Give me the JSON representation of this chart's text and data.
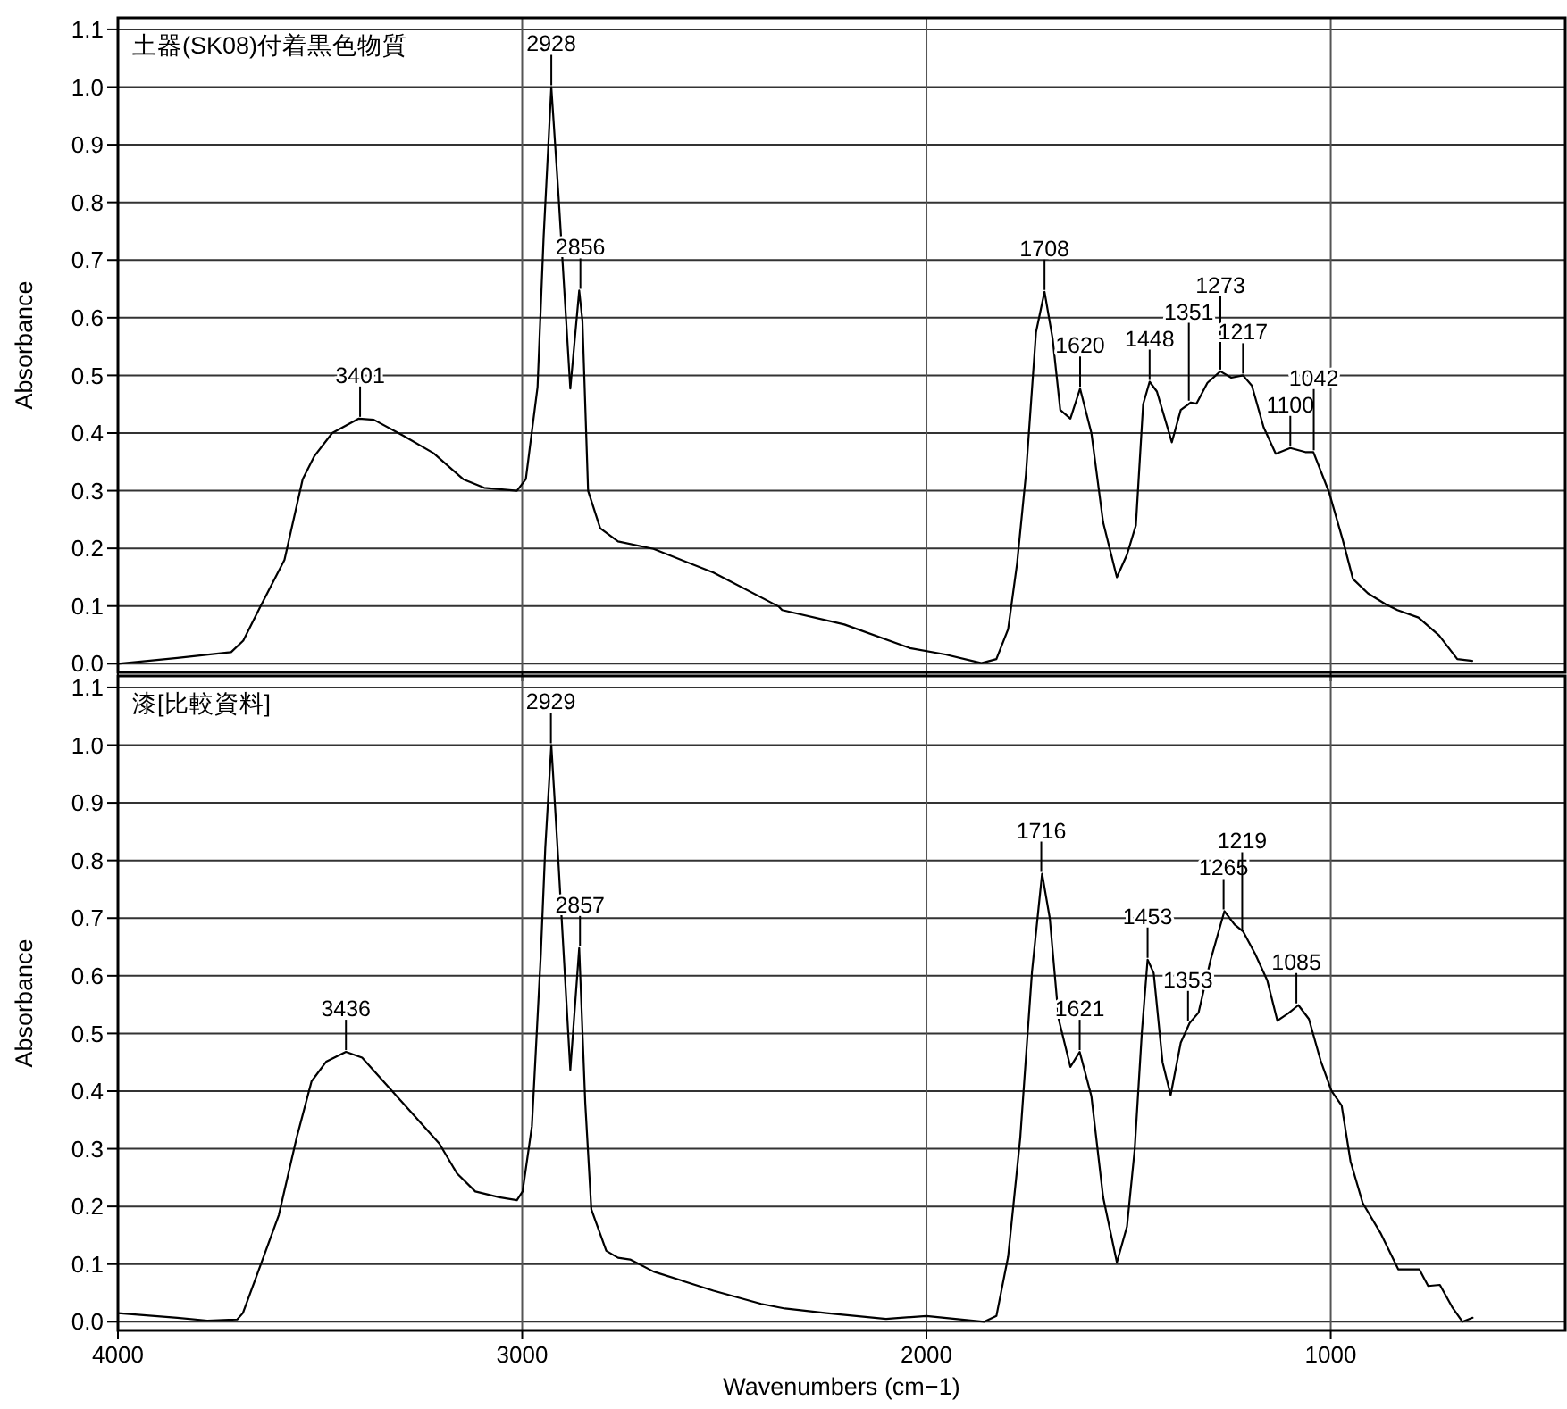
{
  "chart_data": [
    {
      "type": "line",
      "title": "土器(SK08)付着黒色物質",
      "ylabel": "Absorbance",
      "xlim": [
        4000,
        420
      ],
      "xticks": [
        4000,
        3000,
        2000,
        1000
      ],
      "ylim": [
        -0.015,
        1.12
      ],
      "yticks": [
        {
          "value": 0,
          "label": "0.0"
        },
        {
          "value": 0.1,
          "label": "0.1"
        },
        {
          "value": 0.2,
          "label": "0.2"
        },
        {
          "value": 0.3,
          "label": "0.3"
        },
        {
          "value": 0.4,
          "label": "0.4"
        },
        {
          "value": 0.5,
          "label": "0.5"
        },
        {
          "value": 0.6,
          "label": "0.6"
        },
        {
          "value": 0.7,
          "label": "0.7"
        },
        {
          "value": 0.8,
          "label": "0.8"
        },
        {
          "value": 0.9,
          "label": "0.9"
        },
        {
          "value": 1,
          "label": "1.0"
        },
        {
          "value": 1.1,
          "label": "1.1"
        }
      ],
      "grid": true,
      "tick_labels": "y",
      "marker": "none",
      "line_style": "solid",
      "series": [
        {
          "color": "#000000",
          "x": [
            4000,
            3853,
            3720,
            3690,
            3647,
            3588,
            3543,
            3514,
            3470,
            3404,
            3367,
            3293,
            3219,
            3146,
            3094,
            3013,
            2991,
            2962,
            2947,
            2928,
            2910,
            2881,
            2859,
            2851,
            2837,
            2807,
            2763,
            2675,
            2527,
            2365,
            2357,
            2203,
            2041,
            1953,
            1864,
            1827,
            1798,
            1776,
            1754,
            1729,
            1708,
            1688,
            1669,
            1644,
            1620,
            1592,
            1563,
            1529,
            1504,
            1482,
            1464,
            1448,
            1430,
            1393,
            1371,
            1346,
            1332,
            1305,
            1273,
            1246,
            1217,
            1195,
            1166,
            1136,
            1100,
            1063,
            1043,
            1004,
            970,
            945,
            908,
            864,
            835,
            783,
            732,
            687,
            650
          ],
          "values": [
            0.0,
            0.01,
            0.02,
            0.04,
            0.1,
            0.18,
            0.32,
            0.36,
            0.4,
            0.425,
            0.423,
            0.395,
            0.365,
            0.32,
            0.305,
            0.3,
            0.32,
            0.48,
            0.74,
            1.0,
            0.81,
            0.477,
            0.647,
            0.595,
            0.3,
            0.235,
            0.212,
            0.199,
            0.158,
            0.099,
            0.093,
            0.068,
            0.027,
            0.016,
            0.001,
            0.008,
            0.06,
            0.173,
            0.328,
            0.575,
            0.645,
            0.564,
            0.44,
            0.425,
            0.477,
            0.4,
            0.245,
            0.15,
            0.189,
            0.24,
            0.45,
            0.489,
            0.472,
            0.384,
            0.44,
            0.453,
            0.451,
            0.487,
            0.507,
            0.496,
            0.5,
            0.482,
            0.41,
            0.364,
            0.374,
            0.367,
            0.367,
            0.297,
            0.214,
            0.147,
            0.122,
            0.103,
            0.093,
            0.08,
            0.049,
            0.008,
            0.005
          ]
        }
      ],
      "annotations": [
        {
          "text": "3401",
          "x": 3401,
          "y": 0.425
        },
        {
          "text": "2928",
          "x": 2928,
          "y": 1.0
        },
        {
          "text": "2856",
          "x": 2856,
          "y": 0.647
        },
        {
          "text": "1708",
          "x": 1708,
          "y": 0.645
        },
        {
          "text": "1620",
          "x": 1620,
          "y": 0.477
        },
        {
          "text": "1448",
          "x": 1448,
          "y": 0.489
        },
        {
          "text": "1351",
          "x": 1351,
          "y": 0.453
        },
        {
          "text": "1273",
          "x": 1273,
          "y": 0.507
        },
        {
          "text": "1217",
          "x": 1217,
          "y": 0.5
        },
        {
          "text": "1100",
          "x": 1100,
          "y": 0.374
        },
        {
          "text": "1042",
          "x": 1042,
          "y": 0.367
        }
      ]
    },
    {
      "type": "line",
      "title": "漆[比較資料]",
      "xlabel": "Wavenumbers (cm−1)",
      "ylabel": "Absorbance",
      "xlim": [
        4000,
        420
      ],
      "xticks": [
        4000,
        3000,
        2000,
        1000
      ],
      "ylim": [
        -0.015,
        1.12
      ],
      "yticks": [
        {
          "value": 0,
          "label": "0.0"
        },
        {
          "value": 0.1,
          "label": "0.1"
        },
        {
          "value": 0.2,
          "label": "0.2"
        },
        {
          "value": 0.3,
          "label": "0.3"
        },
        {
          "value": 0.4,
          "label": "0.4"
        },
        {
          "value": 0.5,
          "label": "0.5"
        },
        {
          "value": 0.6,
          "label": "0.6"
        },
        {
          "value": 0.7,
          "label": "0.7"
        },
        {
          "value": 0.8,
          "label": "0.8"
        },
        {
          "value": 0.9,
          "label": "0.9"
        },
        {
          "value": 1,
          "label": "1.0"
        },
        {
          "value": 1.1,
          "label": "1.1"
        }
      ],
      "grid": true,
      "marker": "none",
      "line_style": "solid",
      "series": [
        {
          "color": "#000000",
          "x": [
            4000,
            3853,
            3779,
            3705,
            3691,
            3661,
            3602,
            3558,
            3521,
            3485,
            3436,
            3396,
            3337,
            3264,
            3205,
            3161,
            3116,
            3057,
            3013,
            2999,
            2976,
            2954,
            2943,
            2928,
            2910,
            2881,
            2859,
            2844,
            2829,
            2792,
            2763,
            2733,
            2675,
            2527,
            2409,
            2350,
            2247,
            2100,
            2000,
            1857,
            1827,
            1798,
            1768,
            1739,
            1714,
            1695,
            1673,
            1644,
            1621,
            1592,
            1563,
            1529,
            1504,
            1485,
            1467,
            1453,
            1438,
            1416,
            1396,
            1371,
            1349,
            1327,
            1297,
            1263,
            1238,
            1217,
            1187,
            1157,
            1132,
            1105,
            1080,
            1054,
            1025,
            998,
            973,
            951,
            921,
            877,
            833,
            781,
            759,
            730,
            700,
            674,
            649
          ],
          "values": [
            0.015,
            0.007,
            0.002,
            0.004,
            0.015,
            0.072,
            0.185,
            0.319,
            0.417,
            0.451,
            0.468,
            0.458,
            0.412,
            0.355,
            0.309,
            0.257,
            0.226,
            0.216,
            0.211,
            0.226,
            0.339,
            0.636,
            0.821,
            1.0,
            0.792,
            0.437,
            0.648,
            0.379,
            0.195,
            0.123,
            0.111,
            0.108,
            0.087,
            0.054,
            0.031,
            0.023,
            0.015,
            0.005,
            0.01,
            0.0,
            0.01,
            0.113,
            0.319,
            0.607,
            0.777,
            0.7,
            0.525,
            0.442,
            0.468,
            0.391,
            0.216,
            0.103,
            0.165,
            0.298,
            0.504,
            0.628,
            0.605,
            0.45,
            0.393,
            0.484,
            0.518,
            0.536,
            0.628,
            0.712,
            0.689,
            0.677,
            0.638,
            0.592,
            0.522,
            0.535,
            0.549,
            0.525,
            0.453,
            0.4,
            0.375,
            0.278,
            0.206,
            0.154,
            0.091,
            0.091,
            0.062,
            0.064,
            0.026,
            0.0,
            0.007
          ]
        }
      ],
      "annotations": [
        {
          "text": "3436",
          "x": 3436,
          "y": 0.468
        },
        {
          "text": "2929",
          "x": 2929,
          "y": 1.0
        },
        {
          "text": "2857",
          "x": 2857,
          "y": 0.648
        },
        {
          "text": "1716",
          "x": 1716,
          "y": 0.777
        },
        {
          "text": "1621",
          "x": 1621,
          "y": 0.468
        },
        {
          "text": "1453",
          "x": 1453,
          "y": 0.628
        },
        {
          "text": "1353",
          "x": 1353,
          "y": 0.518
        },
        {
          "text": "1265",
          "x": 1265,
          "y": 0.712
        },
        {
          "text": "1219",
          "x": 1219,
          "y": 0.677
        },
        {
          "text": "1085",
          "x": 1085,
          "y": 0.549
        }
      ]
    }
  ]
}
